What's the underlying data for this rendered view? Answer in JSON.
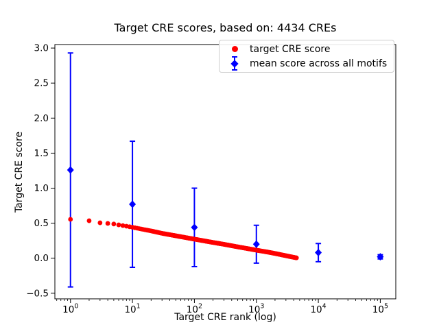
{
  "figure": {
    "title": "Target CRE scores, based on: 4434 CREs",
    "xlabel": "Target CRE rank (log)",
    "ylabel": "Target CRE score",
    "background": "#ffffff",
    "text_color": "#000000"
  },
  "legend": {
    "position": "upper right inside axes",
    "border_color": "#cccccc",
    "items": [
      {
        "label": "target CRE score",
        "marker": "circle",
        "color": "#ff0000"
      },
      {
        "label": "mean score across all motifs",
        "marker": "diamond-with-errorbar",
        "color": "#0000ff"
      }
    ]
  },
  "chart_data": {
    "type": "scatter",
    "xscale": "log",
    "yscale": "linear",
    "xlim": [
      0.56,
      177828
    ],
    "ylim": [
      -0.58,
      3.05
    ],
    "grid": false,
    "x_major_ticks": [
      1,
      10,
      100,
      1000,
      10000,
      100000
    ],
    "x_tick_base": "10",
    "x_tick_exponents": [
      "0",
      "1",
      "2",
      "3",
      "4",
      "5"
    ],
    "x_minor_subs": [
      2,
      3,
      4,
      5,
      6,
      7,
      8,
      9
    ],
    "y_ticks": [
      {
        "value": 3.0,
        "label": "3.0"
      },
      {
        "value": 2.5,
        "label": "2.5"
      },
      {
        "value": 2.0,
        "label": "2.0"
      },
      {
        "value": 1.5,
        "label": "1.5"
      },
      {
        "value": 1.0,
        "label": "1.0"
      },
      {
        "value": 0.5,
        "label": "0.5"
      },
      {
        "value": 0.0,
        "label": "0.0"
      },
      {
        "value": -0.5,
        "label": "−0.5"
      }
    ],
    "series": [
      {
        "name": "target CRE score",
        "type": "scatter",
        "marker": "circle",
        "color": "#ff0000",
        "marker_radius_px": 3.4,
        "n_points": 4434,
        "rank_range": [
          1,
          4434
        ],
        "description": "score decreases smoothly with log10(rank), from 0.555 at rank 1 to ~0.0 at rank 4434",
        "anchors_log10rank_value": [
          [
            0.0,
            0.555
          ],
          [
            0.3,
            0.535
          ],
          [
            0.48,
            0.505
          ],
          [
            0.6,
            0.497
          ],
          [
            0.7,
            0.488
          ],
          [
            0.85,
            0.465
          ],
          [
            1.0,
            0.442
          ],
          [
            1.18,
            0.41
          ],
          [
            1.3,
            0.39
          ],
          [
            1.48,
            0.355
          ],
          [
            1.7,
            0.32
          ],
          [
            2.0,
            0.272
          ],
          [
            2.3,
            0.225
          ],
          [
            2.48,
            0.198
          ],
          [
            2.7,
            0.162
          ],
          [
            3.0,
            0.115
          ],
          [
            3.18,
            0.088
          ],
          [
            3.3,
            0.068
          ],
          [
            3.48,
            0.035
          ],
          [
            3.647,
            0.005
          ]
        ]
      },
      {
        "name": "mean score across all motifs",
        "type": "errorbar",
        "marker": "diamond",
        "color": "#0000ff",
        "x": [
          1,
          10,
          100,
          1000,
          10000,
          100000
        ],
        "y": [
          1.26,
          0.77,
          0.44,
          0.2,
          0.08,
          0.02
        ],
        "yerr": [
          1.67,
          0.9,
          0.56,
          0.27,
          0.13,
          0.03
        ],
        "capsize_px": 8
      }
    ]
  }
}
